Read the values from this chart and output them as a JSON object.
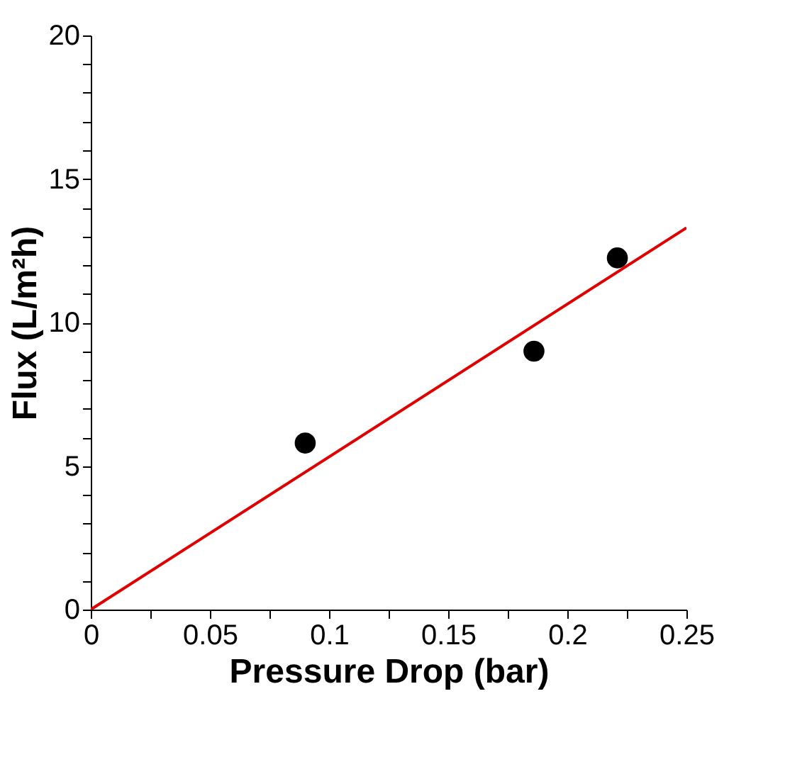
{
  "chart_data": {
    "type": "scatter",
    "xlabel": "Pressure Drop (bar)",
    "ylabel": "Flux (L/m²h)",
    "xlim": [
      0,
      0.25
    ],
    "ylim": [
      0,
      20
    ],
    "xticks": [
      0,
      {
        "value": 0.025,
        "label": null
      },
      0.05,
      {
        "value": 0.075,
        "label": null
      },
      0.1,
      {
        "value": 0.125,
        "label": null
      },
      0.15,
      {
        "value": 0.175,
        "label": null
      },
      0.2,
      {
        "value": 0.225,
        "label": null
      },
      0.25
    ],
    "yticks": [
      0,
      {
        "value": 1,
        "label": null
      },
      {
        "value": 2,
        "label": null
      },
      {
        "value": 3,
        "label": null
      },
      {
        "value": 4,
        "label": null
      },
      5,
      {
        "value": 6,
        "label": null
      },
      {
        "value": 7,
        "label": null
      },
      {
        "value": 8,
        "label": null
      },
      {
        "value": 9,
        "label": null
      },
      10,
      {
        "value": 11,
        "label": null
      },
      {
        "value": 12,
        "label": null
      },
      {
        "value": 13,
        "label": null
      },
      {
        "value": 14,
        "label": null
      },
      15,
      {
        "value": 16,
        "label": null
      },
      {
        "value": 17,
        "label": null
      },
      {
        "value": 18,
        "label": null
      },
      {
        "value": 19,
        "label": null
      },
      20
    ],
    "grid": false,
    "series": [
      {
        "color": "#000000",
        "marker": "circle",
        "x": [
          0.09,
          0.186,
          0.221
        ],
        "values": [
          5.8,
          9.0,
          12.25
        ]
      },
      {
        "type": "line",
        "color": "#e00000",
        "line_style": "solid",
        "x": [
          0,
          0.25
        ],
        "values": [
          0,
          13.3
        ]
      }
    ]
  }
}
